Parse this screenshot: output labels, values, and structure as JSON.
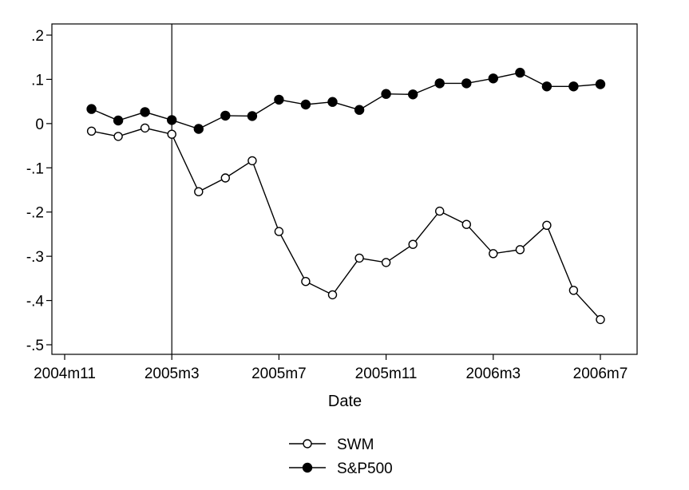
{
  "chart_data": {
    "type": "line",
    "xlabel": "Date",
    "x_ticks": [
      "2004m11",
      "2005m3",
      "2005m7",
      "2005m11",
      "2006m3",
      "2006m7"
    ],
    "y_ticks": [
      ".2",
      ".1",
      "0",
      "-.1",
      "-.2",
      "-.3",
      "-.4",
      "-.5"
    ],
    "ylim": [
      -0.52,
      0.22
    ],
    "x_start": "2004m11",
    "x_end": "2006m8",
    "reference_line_x": "2005m3",
    "grid": false,
    "legend_position": "bottom",
    "series": [
      {
        "name": "SWM",
        "marker": "hollow-circle",
        "x": [
          "2004m12",
          "2005m1",
          "2005m2",
          "2005m3",
          "2005m4",
          "2005m5",
          "2005m6",
          "2005m7",
          "2005m8",
          "2005m9",
          "2005m10",
          "2005m11",
          "2005m12",
          "2006m1",
          "2006m2",
          "2006m3",
          "2006m4",
          "2006m5",
          "2006m6",
          "2006m7"
        ],
        "values": [
          -0.017,
          -0.029,
          -0.01,
          -0.024,
          -0.154,
          -0.123,
          -0.084,
          -0.244,
          -0.357,
          -0.387,
          -0.304,
          -0.314,
          -0.273,
          -0.198,
          -0.228,
          -0.294,
          -0.285,
          -0.23,
          -0.377,
          -0.443
        ]
      },
      {
        "name": "S&P500",
        "marker": "filled-circle",
        "x": [
          "2004m12",
          "2005m1",
          "2005m2",
          "2005m3",
          "2005m4",
          "2005m5",
          "2005m6",
          "2005m7",
          "2005m8",
          "2005m9",
          "2005m10",
          "2005m11",
          "2005m12",
          "2006m1",
          "2006m2",
          "2006m3",
          "2006m4",
          "2006m5",
          "2006m6",
          "2006m7"
        ],
        "values": [
          0.033,
          0.007,
          0.026,
          0.008,
          -0.012,
          0.018,
          0.017,
          0.054,
          0.043,
          0.049,
          0.031,
          0.067,
          0.066,
          0.091,
          0.091,
          0.102,
          0.115,
          0.084,
          0.084,
          0.089
        ]
      }
    ]
  }
}
